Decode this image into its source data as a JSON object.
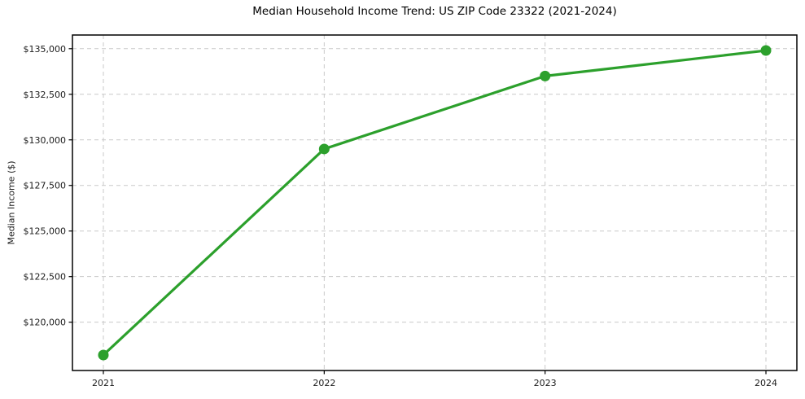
{
  "chart_data": {
    "type": "line",
    "title": "Median Household Income Trend: US ZIP Code 23322 (2021-2024)",
    "xlabel": "",
    "ylabel": "Median Income ($)",
    "categories": [
      "2021",
      "2022",
      "2023",
      "2024"
    ],
    "x_values": [
      2021,
      2022,
      2023,
      2024
    ],
    "values": [
      118200,
      129500,
      133500,
      134900
    ],
    "x_ticks": [
      {
        "value": 2021,
        "label": "2021"
      },
      {
        "value": 2022,
        "label": "2022"
      },
      {
        "value": 2023,
        "label": "2023"
      },
      {
        "value": 2024,
        "label": "2024"
      }
    ],
    "y_ticks": [
      {
        "value": 120000,
        "label": "$120,000"
      },
      {
        "value": 122500,
        "label": "$122,500"
      },
      {
        "value": 125000,
        "label": "$125,000"
      },
      {
        "value": 127500,
        "label": "$127,500"
      },
      {
        "value": 130000,
        "label": "$130,000"
      },
      {
        "value": 132500,
        "label": "$132,500"
      },
      {
        "value": 135000,
        "label": "$135,000"
      }
    ],
    "xlim": [
      2020.86,
      2024.14
    ],
    "ylim": [
      117350,
      135750
    ],
    "grid": true,
    "grid_style": "dashed",
    "legend_position": "none",
    "colors": {
      "line": "#2ca02c",
      "marker": "#2ca02c",
      "grid": "#c9c9c9",
      "axis": "#000000",
      "text": "#1a1a1a",
      "background": "#ffffff"
    }
  }
}
